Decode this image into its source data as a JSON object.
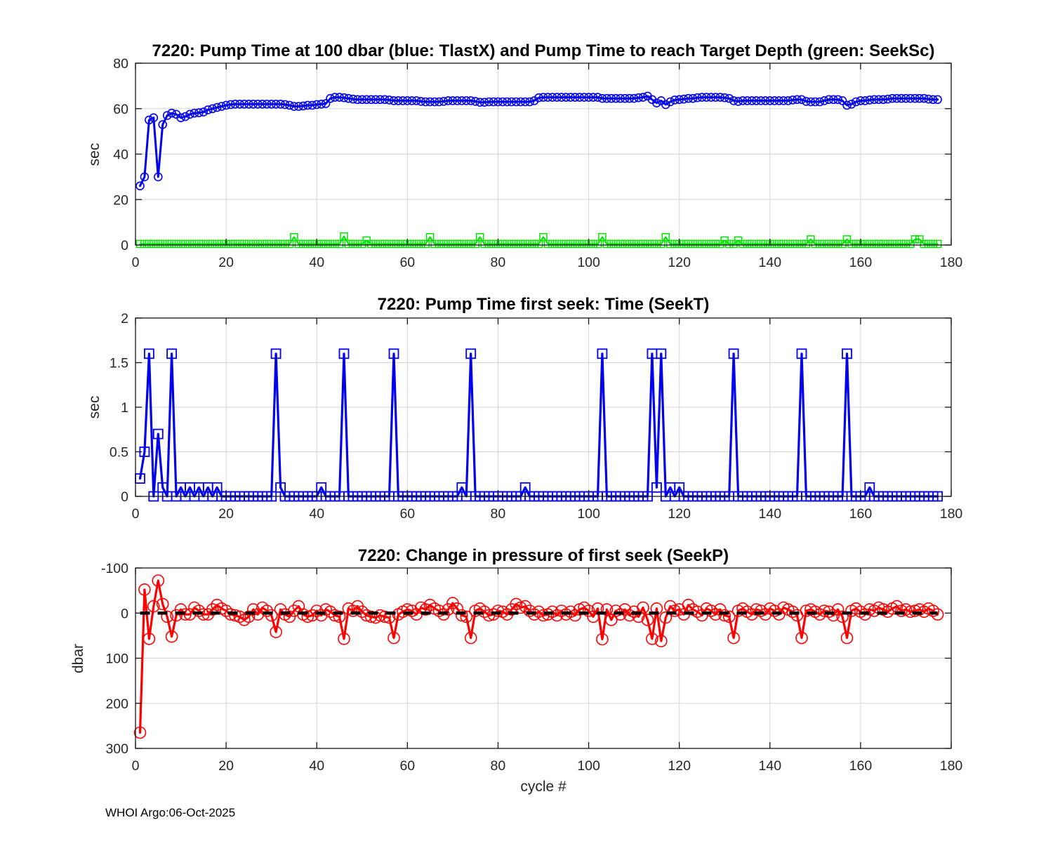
{
  "footer": {
    "stamp": "WHOI Argo:06-Oct-2025"
  },
  "chart_data": [
    {
      "type": "line",
      "title": "7220:  Pump Time at 100 dbar (blue: TlastX) and Pump Time to reach Target Depth (green: SeekSc)",
      "xlabel": "",
      "ylabel": "sec",
      "xlim": [
        0,
        180
      ],
      "ylim": [
        0,
        80
      ],
      "xticks": [
        0,
        20,
        40,
        60,
        80,
        100,
        120,
        140,
        160,
        180
      ],
      "xtick_labels": [
        "0",
        "20",
        "40",
        "60",
        "80",
        "100",
        "120",
        "140",
        "160",
        "180"
      ],
      "yticks": [
        0,
        20,
        40,
        60,
        80
      ],
      "ytick_labels": [
        "0",
        "20",
        "40",
        "60",
        "80"
      ],
      "y_reverse": false,
      "grid": true,
      "legend": "none (series identified in title)",
      "series": [
        {
          "name": "SeekSc",
          "color": "#00e400",
          "marker": "square",
          "marker_size": 5,
          "marker_stroke": 1.5,
          "line_width": 2.2,
          "x_start": 1,
          "values": [
            0.5,
            0.5,
            0.5,
            0.5,
            0.5,
            0.5,
            0.5,
            0.5,
            0.5,
            0.5,
            0.5,
            0.5,
            0.5,
            0.5,
            0.5,
            0.5,
            0.5,
            0.5,
            0.5,
            0.5,
            0.5,
            0.5,
            0.5,
            0.5,
            0.5,
            0.5,
            0.5,
            0.5,
            0.5,
            0.5,
            0.5,
            0.5,
            0.5,
            0.5,
            3.5,
            0.5,
            0.5,
            0.5,
            0.5,
            0.5,
            0.5,
            0.5,
            0.5,
            0.5,
            0.5,
            3.8,
            0.5,
            0.5,
            0.5,
            0.5,
            2,
            0.5,
            0.5,
            0.5,
            0.5,
            0.5,
            0.5,
            0.5,
            0.5,
            0.5,
            0.5,
            0.5,
            0.5,
            0.5,
            3.5,
            0.5,
            0.5,
            0.5,
            0.5,
            0.5,
            0.5,
            0.5,
            0.5,
            0.5,
            0.5,
            3.5,
            0.5,
            0.5,
            0.5,
            0.5,
            0.5,
            0.5,
            0.5,
            0.5,
            0.5,
            0.5,
            0.5,
            0.5,
            0.5,
            3.5,
            0.5,
            0.5,
            0.5,
            0.5,
            0.5,
            0.5,
            0.5,
            0.5,
            0.5,
            0.5,
            0.5,
            0.5,
            3.5,
            0.5,
            0.5,
            0.5,
            0.5,
            0.5,
            0.5,
            0.5,
            0.5,
            0.5,
            0.5,
            0.5,
            0.5,
            0.5,
            3.5,
            0.5,
            0.5,
            0.5,
            0.5,
            0.5,
            0.5,
            0.5,
            0.5,
            0.5,
            0.5,
            0.5,
            0.5,
            2,
            0.5,
            0.5,
            2,
            0.5,
            0.5,
            0.5,
            0.5,
            0.5,
            0.5,
            0.5,
            0.5,
            0.5,
            0.5,
            0.5,
            0.5,
            0.5,
            0.5,
            0.5,
            2.5,
            0.5,
            0.5,
            0.5,
            0.5,
            0.5,
            0.5,
            0.5,
            2.5,
            0.5,
            0.5,
            0.5,
            0.5,
            0.5,
            0.5,
            0.5,
            0.5,
            0.5,
            0.5,
            0.5,
            0.5,
            0.5,
            0.5,
            2.5,
            2.5,
            0.5,
            0.5,
            0.5,
            0.5
          ]
        },
        {
          "name": "TlastX",
          "color": "#0000ee",
          "marker": "circle",
          "marker_size": 5.5,
          "marker_stroke": 1.6,
          "line_width": 3,
          "x_start": 1,
          "values": [
            26,
            30,
            55,
            56,
            30,
            53,
            57,
            58,
            57.5,
            56,
            56.5,
            57.5,
            58,
            58.2,
            58.5,
            59.5,
            60,
            60.5,
            61,
            61.5,
            61.8,
            62,
            62,
            62,
            62,
            62,
            62,
            62,
            62,
            62,
            62,
            62,
            61.8,
            61.5,
            61,
            61,
            61.2,
            61.5,
            61.5,
            61.8,
            62,
            62.2,
            64.5,
            65,
            65,
            64.8,
            64.5,
            64.2,
            64,
            64,
            64,
            64,
            64,
            64,
            64,
            63.8,
            63.5,
            63.5,
            63.5,
            63.5,
            63.5,
            63.5,
            63.2,
            63,
            63,
            63,
            63,
            63.2,
            63.5,
            63.5,
            63.5,
            63.5,
            63.5,
            63.5,
            63.2,
            62.8,
            62.8,
            63,
            63,
            63,
            63,
            63,
            63,
            63,
            63,
            63,
            63,
            63.5,
            64.8,
            65,
            65,
            65,
            65,
            65,
            65,
            65,
            65,
            65,
            65,
            65,
            65,
            65,
            64.5,
            64.5,
            64.5,
            64.5,
            64.5,
            64.5,
            64.5,
            64.5,
            64.8,
            65,
            65.5,
            64,
            62.5,
            63.5,
            61.8,
            63,
            63.8,
            64,
            64.2,
            64.5,
            64.5,
            64.8,
            65,
            65,
            65,
            65,
            65,
            64.8,
            64.5,
            63.5,
            63.2,
            63.5,
            63.5,
            63.5,
            63.5,
            63.5,
            63.5,
            63.5,
            63.5,
            63.5,
            63.5,
            63.5,
            63.8,
            64,
            64,
            63.2,
            63,
            63,
            63,
            63.5,
            64,
            64,
            64,
            63.5,
            61.5,
            62,
            63,
            63.5,
            63.5,
            63.8,
            64,
            64,
            64,
            64.2,
            64.5,
            64.5,
            64.5,
            64.5,
            64.5,
            64.5,
            64.5,
            64.5,
            64.2,
            64,
            64
          ]
        }
      ]
    },
    {
      "type": "line",
      "title": "7220: Pump Time first seek: Time (SeekT)",
      "xlabel": "",
      "ylabel": "sec",
      "xlim": [
        0,
        180
      ],
      "ylim": [
        0,
        2
      ],
      "xticks": [
        0,
        20,
        40,
        60,
        80,
        100,
        120,
        140,
        160,
        180
      ],
      "xtick_labels": [
        "0",
        "20",
        "40",
        "60",
        "80",
        "100",
        "120",
        "140",
        "160",
        "180"
      ],
      "yticks": [
        0,
        0.5,
        1,
        1.5,
        2
      ],
      "ytick_labels": [
        "0",
        "0.5",
        "1",
        "1.5",
        "2"
      ],
      "y_reverse": false,
      "grid": true,
      "series": [
        {
          "name": "SeekT",
          "color": "#0000ee",
          "marker": "square",
          "marker_size": 6.5,
          "marker_stroke": 1.8,
          "line_width": 3.2,
          "x_start": 1,
          "values": [
            0.2,
            0.5,
            1.6,
            0,
            0.7,
            0.1,
            0,
            1.6,
            0,
            0.1,
            0,
            0.1,
            0,
            0.1,
            0,
            0.1,
            0,
            0.1,
            0,
            0,
            0,
            0,
            0,
            0,
            0,
            0,
            0,
            0,
            0,
            0,
            1.6,
            0.1,
            0,
            0,
            0,
            0,
            0,
            0,
            0,
            0,
            0.1,
            0,
            0,
            0,
            0,
            1.6,
            0,
            0,
            0,
            0,
            0,
            0,
            0,
            0,
            0,
            0,
            1.6,
            0,
            0,
            0,
            0,
            0,
            0,
            0,
            0,
            0,
            0,
            0,
            0,
            0,
            0,
            0.1,
            0,
            1.6,
            0,
            0,
            0,
            0,
            0,
            0,
            0,
            0,
            0,
            0,
            0,
            0.1,
            0,
            0,
            0,
            0,
            0,
            0,
            0,
            0,
            0,
            0,
            0,
            0,
            0,
            0,
            0,
            0,
            1.6,
            0,
            0,
            0,
            0,
            0,
            0,
            0,
            0,
            0,
            0,
            1.6,
            0.1,
            1.6,
            0,
            0.1,
            0,
            0.1,
            0,
            0,
            0,
            0,
            0,
            0,
            0,
            0,
            0,
            0,
            0,
            1.6,
            0,
            0,
            0,
            0,
            0,
            0,
            0,
            0,
            0,
            0,
            0,
            0,
            0,
            0,
            1.6,
            0,
            0,
            0,
            0,
            0,
            0,
            0,
            0,
            0,
            1.6,
            0,
            0,
            0,
            0,
            0.1,
            0,
            0,
            0,
            0,
            0,
            0,
            0,
            0,
            0,
            0,
            0,
            0,
            0,
            0,
            0
          ]
        }
      ]
    },
    {
      "type": "line",
      "title": "7220: Change in pressure of first seek (SeekP)",
      "xlabel": "cycle #",
      "ylabel": "dbar",
      "xlim": [
        0,
        180
      ],
      "ylim": [
        -100,
        300
      ],
      "xticks": [
        0,
        20,
        40,
        60,
        80,
        100,
        120,
        140,
        160,
        180
      ],
      "xtick_labels": [
        "0",
        "20",
        "40",
        "60",
        "80",
        "100",
        "120",
        "140",
        "160",
        "180"
      ],
      "yticks": [
        -100,
        0,
        100,
        200,
        300
      ],
      "ytick_labels": [
        "-100",
        "0",
        "100",
        "200",
        "300"
      ],
      "y_reverse": true,
      "grid": true,
      "zero_line": {
        "y": 0,
        "x_start": 1,
        "x_end": 177,
        "color": "#000000",
        "dash": "14 11",
        "width": 4.5
      },
      "series": [
        {
          "name": "SeekP",
          "color": "#ff0000",
          "marker": "circle",
          "marker_size": 8,
          "marker_stroke": 1.6,
          "line_width": 3.2,
          "x_start": 1,
          "values": [
            265,
            -52,
            57,
            -15,
            -72,
            -20,
            8,
            52,
            5,
            -8,
            3,
            3,
            -12,
            -5,
            3,
            3,
            -8,
            -18,
            -10,
            -5,
            3,
            5,
            8,
            15,
            8,
            -8,
            3,
            -12,
            -5,
            5,
            42,
            -8,
            3,
            8,
            -5,
            -15,
            3,
            8,
            5,
            -5,
            5,
            -8,
            -3,
            5,
            8,
            57,
            -10,
            -5,
            -15,
            -3,
            5,
            8,
            10,
            5,
            8,
            10,
            55,
            3,
            -3,
            -8,
            -5,
            3,
            -12,
            -8,
            -18,
            -10,
            -5,
            3,
            -8,
            -22,
            -10,
            5,
            8,
            55,
            -5,
            -10,
            -3,
            5,
            3,
            -5,
            -3,
            3,
            -8,
            -20,
            -12,
            -15,
            -5,
            3,
            -3,
            5,
            3,
            -3,
            5,
            -5,
            3,
            -3,
            5,
            -8,
            -12,
            -5,
            8,
            -10,
            58,
            -8,
            15,
            -5,
            3,
            -8,
            5,
            -3,
            8,
            -12,
            15,
            57,
            -10,
            62,
            10,
            -15,
            -5,
            -8,
            3,
            -18,
            -8,
            -3,
            5,
            -10,
            -5,
            3,
            -8,
            5,
            8,
            55,
            -5,
            -10,
            -3,
            3,
            -8,
            -5,
            3,
            -10,
            -5,
            3,
            -12,
            -8,
            -3,
            5,
            55,
            -5,
            -8,
            -3,
            3,
            -5,
            -3,
            5,
            -8,
            8,
            55,
            -5,
            -10,
            -3,
            3,
            -8,
            -5,
            -12,
            -8,
            -3,
            -10,
            -15,
            -5,
            -8,
            -3,
            -5,
            -8,
            -3,
            -10,
            -5,
            3
          ]
        }
      ]
    }
  ]
}
